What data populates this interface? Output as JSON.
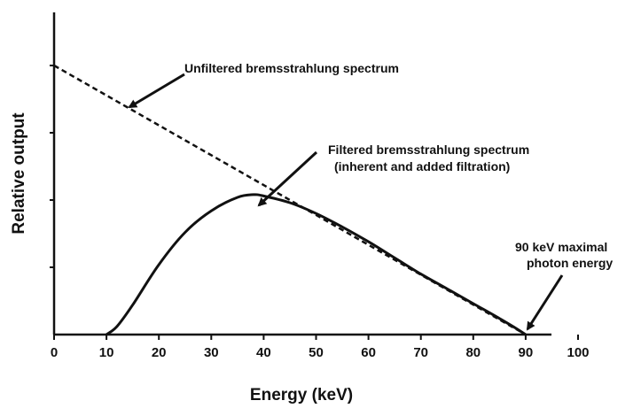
{
  "chart_data": {
    "type": "line",
    "title": "",
    "xlabel": "Energy (keV)",
    "ylabel": "Relative output",
    "xlim": [
      0,
      100
    ],
    "ylim": [
      0,
      1
    ],
    "xticks": [
      0,
      10,
      20,
      30,
      40,
      50,
      60,
      70,
      80,
      90,
      100
    ],
    "grid": false,
    "series": [
      {
        "style": "dashed",
        "x": [
          0,
          90
        ],
        "y": [
          1.0,
          0.0
        ]
      },
      {
        "style": "solid",
        "x": [
          10,
          12,
          15,
          20,
          25,
          30,
          35,
          38,
          40,
          45,
          50,
          55,
          60,
          65,
          70,
          75,
          80,
          85,
          88,
          90
        ],
        "y": [
          0.0,
          0.03,
          0.11,
          0.26,
          0.38,
          0.46,
          0.51,
          0.52,
          0.515,
          0.49,
          0.45,
          0.4,
          0.345,
          0.285,
          0.225,
          0.17,
          0.115,
          0.06,
          0.025,
          0.0
        ]
      }
    ],
    "annotations": [
      {
        "lines": [
          "Unfiltered bremsstrahlung spectrum"
        ]
      },
      {
        "lines": [
          "Filtered bremsstrahlung spectrum",
          "(inherent and added filtration)"
        ]
      },
      {
        "lines": [
          "90 keV maximal",
          "photon energy"
        ]
      }
    ]
  }
}
